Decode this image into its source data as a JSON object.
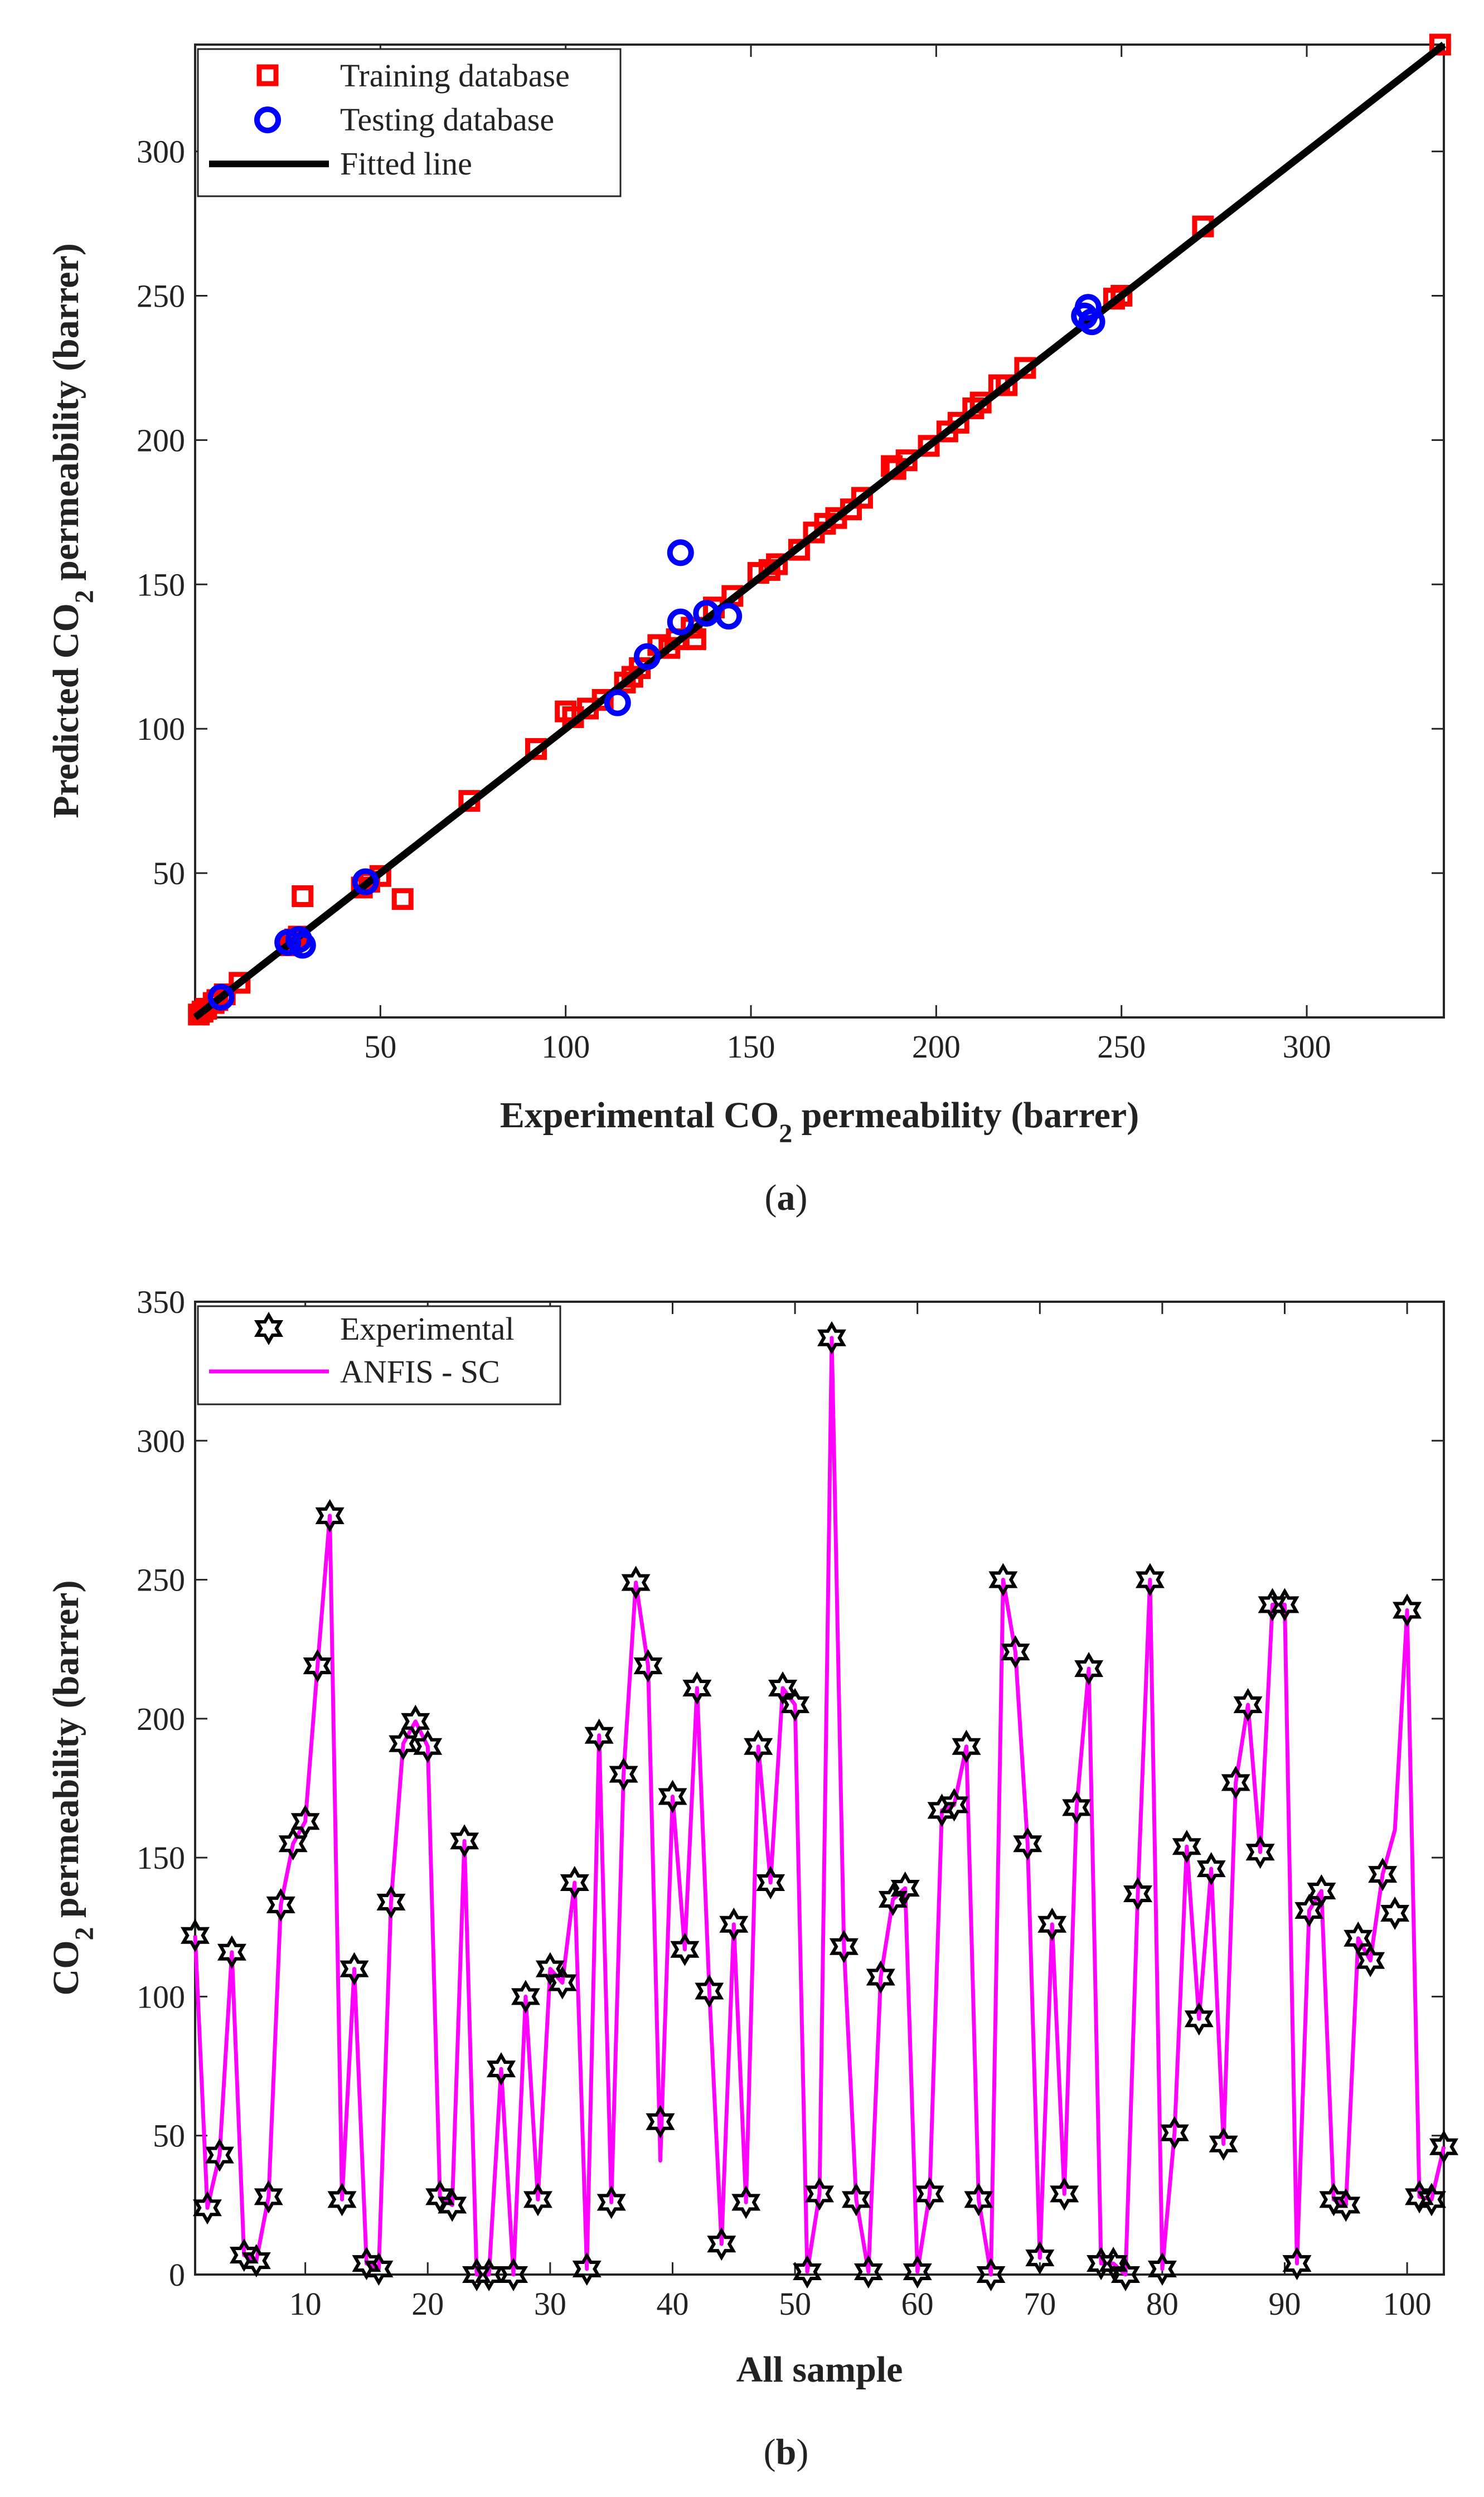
{
  "charts": [
    {
      "panel": "a",
      "chart_data": {
        "type": "scatter",
        "title": "",
        "xlabel_parts": [
          "Experimental CO",
          "2",
          " permeability (barrer)"
        ],
        "ylabel_parts": [
          "Predicted CO",
          "2",
          " permeability (barrer)"
        ],
        "xlim": [
          0,
          337
        ],
        "ylim": [
          0,
          337
        ],
        "xticks": [
          50,
          100,
          150,
          200,
          250,
          300
        ],
        "yticks": [
          50,
          100,
          150,
          200,
          250,
          300
        ],
        "legend_position": "top-left",
        "series": [
          {
            "name": "Training database",
            "marker": "square",
            "color": "#ff0000",
            "points": [
              [
                1,
                1
              ],
              [
                2,
                2
              ],
              [
                3,
                3
              ],
              [
                5,
                5
              ],
              [
                6,
                6
              ],
              [
                8,
                8
              ],
              [
                12,
                12
              ],
              [
                25,
                25
              ],
              [
                26,
                26
              ],
              [
                27,
                27
              ],
              [
                28,
                28
              ],
              [
                29,
                42
              ],
              [
                45,
                45
              ],
              [
                47,
                47
              ],
              [
                50,
                49
              ],
              [
                56,
                41
              ],
              [
                74,
                75
              ],
              [
                92,
                93
              ],
              [
                100,
                106
              ],
              [
                102,
                104
              ],
              [
                106,
                107
              ],
              [
                110,
                110
              ],
              [
                116,
                116
              ],
              [
                118,
                118
              ],
              [
                120,
                121
              ],
              [
                125,
                129
              ],
              [
                128,
                128
              ],
              [
                130,
                131
              ],
              [
                134,
                135
              ],
              [
                135,
                131
              ],
              [
                140,
                142
              ],
              [
                145,
                146
              ],
              [
                152,
                154
              ],
              [
                155,
                155
              ],
              [
                157,
                157
              ],
              [
                163,
                162
              ],
              [
                167,
                168
              ],
              [
                170,
                171
              ],
              [
                173,
                173
              ],
              [
                177,
                176
              ],
              [
                180,
                180
              ],
              [
                188,
                191
              ],
              [
                189,
                190
              ],
              [
                192,
                193
              ],
              [
                198,
                198
              ],
              [
                203,
                203
              ],
              [
                206,
                206
              ],
              [
                210,
                211
              ],
              [
                212,
                213
              ],
              [
                217,
                219
              ],
              [
                219,
                219
              ],
              [
                224,
                225
              ],
              [
                248,
                249
              ],
              [
                250,
                250
              ],
              [
                272,
                274
              ],
              [
                336,
                337
              ]
            ]
          },
          {
            "name": "Testing database",
            "marker": "circle",
            "color": "#0000ff",
            "points": [
              [
                7,
                7
              ],
              [
                25,
                26
              ],
              [
                28,
                27
              ],
              [
                29,
                25
              ],
              [
                46,
                47
              ],
              [
                114,
                109
              ],
              [
                122,
                125
              ],
              [
                131,
                137
              ],
              [
                131,
                161
              ],
              [
                138,
                140
              ],
              [
                144,
                139
              ],
              [
                240,
                243
              ],
              [
                241,
                246
              ],
              [
                242,
                241
              ]
            ]
          },
          {
            "name": "Fitted line",
            "marker": "line",
            "color": "#000000",
            "points": [
              [
                0,
                0
              ],
              [
                337,
                337
              ]
            ]
          }
        ]
      }
    },
    {
      "panel": "b",
      "chart_data": {
        "type": "line",
        "title": "",
        "xlabel_parts": [
          "All sample",
          "",
          ""
        ],
        "ylabel_parts": [
          "CO",
          "2",
          " permeability (barrer)"
        ],
        "xlim": [
          1,
          103
        ],
        "ylim": [
          0,
          350
        ],
        "xticks": [
          10,
          20,
          30,
          40,
          50,
          60,
          70,
          80,
          90,
          100
        ],
        "yticks": [
          0,
          50,
          100,
          150,
          200,
          250,
          300,
          350
        ],
        "legend_position": "top-left",
        "series": [
          {
            "name": "Experimental",
            "marker": "hexagram",
            "color": "#000000",
            "values": [
              122,
              24,
              43,
              116,
              7,
              5,
              28,
              133,
              155,
              163,
              219,
              273,
              27,
              110,
              4,
              2,
              134,
              191,
              199,
              190,
              28,
              25,
              156,
              0,
              0,
              74,
              0,
              100,
              27,
              110,
              105,
              141,
              2,
              194,
              26,
              180,
              249,
              219,
              55,
              172,
              117,
              211,
              102,
              11,
              126,
              26,
              190,
              141,
              211,
              205,
              1,
              29,
              337,
              118,
              27,
              1,
              107,
              135,
              139,
              1,
              29,
              167,
              169,
              190,
              27,
              0,
              250,
              224,
              155,
              6,
              126,
              29,
              168,
              218,
              4,
              4,
              0,
              137,
              250,
              2,
              51,
              154,
              92,
              146,
              47,
              177,
              205,
              152,
              241,
              241,
              4,
              131,
              138,
              27,
              25,
              121,
              113,
              144,
              130,
              239,
              28,
              27,
              46
            ]
          },
          {
            "name": "ANFIS - SC",
            "marker": "line",
            "color": "#ff00ff",
            "values": [
              122,
              24,
              43,
              116,
              7,
              5,
              28,
              133,
              155,
              163,
              219,
              273,
              27,
              110,
              4,
              2,
              134,
              191,
              199,
              190,
              28,
              25,
              156,
              0,
              0,
              74,
              0,
              100,
              27,
              110,
              105,
              141,
              2,
              194,
              26,
              180,
              249,
              219,
              41,
              172,
              117,
              211,
              102,
              11,
              126,
              26,
              190,
              141,
              211,
              205,
              1,
              29,
              337,
              118,
              27,
              1,
              107,
              135,
              139,
              1,
              29,
              167,
              169,
              190,
              27,
              0,
              250,
              224,
              155,
              6,
              126,
              29,
              168,
              218,
              4,
              4,
              0,
              137,
              250,
              2,
              51,
              154,
              92,
              146,
              47,
              177,
              205,
              152,
              241,
              241,
              4,
              131,
              138,
              27,
              25,
              121,
              113,
              144,
              160,
              239,
              28,
              27,
              46
            ]
          }
        ]
      }
    }
  ],
  "captions": {
    "a": [
      "(",
      "a",
      ")"
    ],
    "b": [
      "(",
      "b",
      ")"
    ]
  }
}
